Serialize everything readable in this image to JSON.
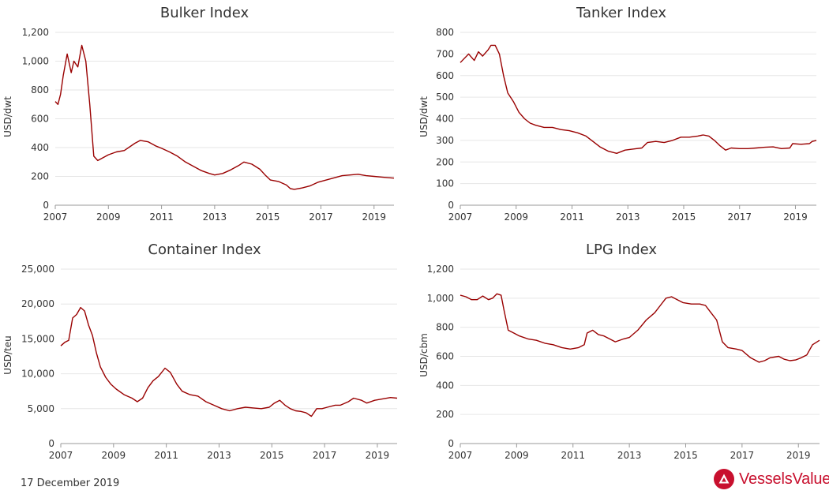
{
  "footer": {
    "date": "17 December 2019"
  },
  "brand": {
    "name": "VesselsValue",
    "color": "#c8102e"
  },
  "colors": {
    "line": "#990000",
    "grid": "#e6e6e6",
    "axis": "#999999",
    "text": "#333333"
  },
  "chart_data": [
    {
      "type": "line",
      "title": "Bulker Index",
      "ylabel": "USD/dwt",
      "xlim": [
        2007,
        2019.75
      ],
      "ylim": [
        0,
        1200
      ],
      "yticks": [
        0,
        200,
        400,
        600,
        800,
        1000,
        1200
      ],
      "ytick_labels": [
        "0",
        "200",
        "400",
        "600",
        "800",
        "1,000",
        "1,200"
      ],
      "xticks": [
        2007,
        2009,
        2011,
        2013,
        2015,
        2017,
        2019
      ],
      "xtick_labels": [
        "2007",
        "2009",
        "2011",
        "2013",
        "2015",
        "2017",
        "2019"
      ],
      "grid": true,
      "series": [
        {
          "points": [
            [
              2007.0,
              720
            ],
            [
              2007.1,
              700
            ],
            [
              2007.2,
              770
            ],
            [
              2007.3,
              900
            ],
            [
              2007.45,
              1050
            ],
            [
              2007.6,
              920
            ],
            [
              2007.7,
              1000
            ],
            [
              2007.85,
              960
            ],
            [
              2008.0,
              1110
            ],
            [
              2008.15,
              1000
            ],
            [
              2008.3,
              700
            ],
            [
              2008.45,
              340
            ],
            [
              2008.6,
              310
            ],
            [
              2008.8,
              330
            ],
            [
              2009.0,
              350
            ],
            [
              2009.3,
              370
            ],
            [
              2009.6,
              380
            ],
            [
              2010.0,
              430
            ],
            [
              2010.2,
              450
            ],
            [
              2010.5,
              440
            ],
            [
              2010.8,
              410
            ],
            [
              2011.0,
              395
            ],
            [
              2011.3,
              370
            ],
            [
              2011.6,
              340
            ],
            [
              2011.9,
              300
            ],
            [
              2012.2,
              270
            ],
            [
              2012.5,
              240
            ],
            [
              2012.8,
              220
            ],
            [
              2013.0,
              210
            ],
            [
              2013.3,
              220
            ],
            [
              2013.6,
              245
            ],
            [
              2013.9,
              275
            ],
            [
              2014.1,
              300
            ],
            [
              2014.4,
              285
            ],
            [
              2014.7,
              250
            ],
            [
              2014.9,
              210
            ],
            [
              2015.1,
              175
            ],
            [
              2015.4,
              165
            ],
            [
              2015.7,
              140
            ],
            [
              2015.85,
              115
            ],
            [
              2016.0,
              110
            ],
            [
              2016.3,
              120
            ],
            [
              2016.6,
              135
            ],
            [
              2016.9,
              160
            ],
            [
              2017.2,
              175
            ],
            [
              2017.5,
              190
            ],
            [
              2017.8,
              205
            ],
            [
              2018.1,
              210
            ],
            [
              2018.4,
              215
            ],
            [
              2018.7,
              205
            ],
            [
              2019.0,
              200
            ],
            [
              2019.3,
              195
            ],
            [
              2019.6,
              190
            ],
            [
              2019.75,
              188
            ]
          ]
        }
      ]
    },
    {
      "type": "line",
      "title": "Tanker Index",
      "ylabel": "USD/dwt",
      "xlim": [
        2007,
        2019.75
      ],
      "ylim": [
        0,
        800
      ],
      "yticks": [
        0,
        100,
        200,
        300,
        400,
        500,
        600,
        700,
        800
      ],
      "ytick_labels": [
        "0",
        "100",
        "200",
        "300",
        "400",
        "500",
        "600",
        "700",
        "800"
      ],
      "xticks": [
        2007,
        2009,
        2011,
        2013,
        2015,
        2017,
        2019
      ],
      "xtick_labels": [
        "2007",
        "2009",
        "2011",
        "2013",
        "2015",
        "2017",
        "2019"
      ],
      "grid": true,
      "series": [
        {
          "points": [
            [
              2007.0,
              660
            ],
            [
              2007.15,
              680
            ],
            [
              2007.3,
              700
            ],
            [
              2007.5,
              670
            ],
            [
              2007.65,
              710
            ],
            [
              2007.8,
              690
            ],
            [
              2008.0,
              720
            ],
            [
              2008.1,
              740
            ],
            [
              2008.25,
              740
            ],
            [
              2008.4,
              700
            ],
            [
              2008.55,
              600
            ],
            [
              2008.7,
              520
            ],
            [
              2008.9,
              480
            ],
            [
              2009.1,
              430
            ],
            [
              2009.3,
              400
            ],
            [
              2009.5,
              380
            ],
            [
              2009.7,
              370
            ],
            [
              2010.0,
              360
            ],
            [
              2010.3,
              360
            ],
            [
              2010.6,
              350
            ],
            [
              2010.9,
              345
            ],
            [
              2011.2,
              335
            ],
            [
              2011.5,
              320
            ],
            [
              2011.8,
              290
            ],
            [
              2012.0,
              270
            ],
            [
              2012.3,
              250
            ],
            [
              2012.6,
              240
            ],
            [
              2012.9,
              255
            ],
            [
              2013.2,
              260
            ],
            [
              2013.5,
              265
            ],
            [
              2013.7,
              290
            ],
            [
              2014.0,
              295
            ],
            [
              2014.3,
              290
            ],
            [
              2014.6,
              300
            ],
            [
              2014.9,
              315
            ],
            [
              2015.2,
              315
            ],
            [
              2015.5,
              320
            ],
            [
              2015.7,
              325
            ],
            [
              2015.9,
              320
            ],
            [
              2016.1,
              300
            ],
            [
              2016.3,
              275
            ],
            [
              2016.5,
              255
            ],
            [
              2016.7,
              265
            ],
            [
              2017.0,
              262
            ],
            [
              2017.3,
              262
            ],
            [
              2017.6,
              265
            ],
            [
              2017.9,
              268
            ],
            [
              2018.2,
              270
            ],
            [
              2018.5,
              262
            ],
            [
              2018.8,
              265
            ],
            [
              2018.9,
              285
            ],
            [
              2019.2,
              282
            ],
            [
              2019.5,
              285
            ],
            [
              2019.6,
              295
            ],
            [
              2019.75,
              300
            ]
          ]
        }
      ]
    },
    {
      "type": "line",
      "title": "Container Index",
      "ylabel": "USD/teu",
      "xlim": [
        2007,
        2019.75
      ],
      "ylim": [
        0,
        25000
      ],
      "yticks": [
        0,
        5000,
        10000,
        15000,
        20000,
        25000
      ],
      "ytick_labels": [
        "0",
        "5,000",
        "10,000",
        "15,000",
        "20,000",
        "25,000"
      ],
      "xticks": [
        2007,
        2009,
        2011,
        2013,
        2015,
        2017,
        2019
      ],
      "xtick_labels": [
        "2007",
        "2009",
        "2011",
        "2013",
        "2015",
        "2017",
        "2019"
      ],
      "grid": true,
      "series": [
        {
          "points": [
            [
              2007.0,
              14000
            ],
            [
              2007.15,
              14500
            ],
            [
              2007.3,
              14800
            ],
            [
              2007.45,
              18000
            ],
            [
              2007.6,
              18500
            ],
            [
              2007.75,
              19500
            ],
            [
              2007.9,
              19000
            ],
            [
              2008.05,
              17000
            ],
            [
              2008.2,
              15500
            ],
            [
              2008.35,
              13000
            ],
            [
              2008.5,
              11000
            ],
            [
              2008.7,
              9500
            ],
            [
              2008.9,
              8500
            ],
            [
              2009.1,
              7800
            ],
            [
              2009.4,
              7000
            ],
            [
              2009.7,
              6500
            ],
            [
              2009.9,
              6000
            ],
            [
              2010.1,
              6500
            ],
            [
              2010.3,
              8000
            ],
            [
              2010.5,
              9000
            ],
            [
              2010.7,
              9600
            ],
            [
              2010.95,
              10800
            ],
            [
              2011.15,
              10200
            ],
            [
              2011.4,
              8500
            ],
            [
              2011.6,
              7500
            ],
            [
              2011.9,
              7000
            ],
            [
              2012.2,
              6800
            ],
            [
              2012.5,
              6000
            ],
            [
              2012.8,
              5500
            ],
            [
              2013.1,
              5000
            ],
            [
              2013.4,
              4700
            ],
            [
              2013.7,
              5000
            ],
            [
              2014.0,
              5200
            ],
            [
              2014.3,
              5100
            ],
            [
              2014.6,
              5000
            ],
            [
              2014.9,
              5200
            ],
            [
              2015.1,
              5800
            ],
            [
              2015.3,
              6200
            ],
            [
              2015.5,
              5500
            ],
            [
              2015.7,
              5000
            ],
            [
              2015.9,
              4700
            ],
            [
              2016.1,
              4600
            ],
            [
              2016.3,
              4400
            ],
            [
              2016.5,
              3900
            ],
            [
              2016.7,
              5000
            ],
            [
              2016.9,
              5000
            ],
            [
              2017.1,
              5200
            ],
            [
              2017.4,
              5500
            ],
            [
              2017.6,
              5500
            ],
            [
              2017.9,
              6000
            ],
            [
              2018.1,
              6500
            ],
            [
              2018.4,
              6200
            ],
            [
              2018.6,
              5800
            ],
            [
              2018.9,
              6200
            ],
            [
              2019.2,
              6400
            ],
            [
              2019.5,
              6600
            ],
            [
              2019.75,
              6500
            ]
          ]
        }
      ]
    },
    {
      "type": "line",
      "title": "LPG Index",
      "ylabel": "USD/cbm",
      "xlim": [
        2007,
        2019.75
      ],
      "ylim": [
        0,
        1200
      ],
      "yticks": [
        0,
        200,
        400,
        600,
        800,
        1000,
        1200
      ],
      "ytick_labels": [
        "0",
        "200",
        "400",
        "600",
        "800",
        "1,000",
        "1,200"
      ],
      "xticks": [
        2007,
        2009,
        2011,
        2013,
        2015,
        2017,
        2019
      ],
      "xtick_labels": [
        "2007",
        "2009",
        "2011",
        "2013",
        "2015",
        "2017",
        "2019"
      ],
      "grid": true,
      "series": [
        {
          "points": [
            [
              2007.0,
              1020
            ],
            [
              2007.2,
              1010
            ],
            [
              2007.4,
              990
            ],
            [
              2007.6,
              990
            ],
            [
              2007.8,
              1015
            ],
            [
              2008.0,
              990
            ],
            [
              2008.15,
              1000
            ],
            [
              2008.3,
              1030
            ],
            [
              2008.45,
              1020
            ],
            [
              2008.55,
              920
            ],
            [
              2008.7,
              780
            ],
            [
              2008.9,
              760
            ],
            [
              2009.1,
              740
            ],
            [
              2009.4,
              720
            ],
            [
              2009.7,
              710
            ],
            [
              2010.0,
              690
            ],
            [
              2010.3,
              680
            ],
            [
              2010.6,
              660
            ],
            [
              2010.9,
              650
            ],
            [
              2011.2,
              660
            ],
            [
              2011.4,
              680
            ],
            [
              2011.5,
              760
            ],
            [
              2011.7,
              780
            ],
            [
              2011.9,
              750
            ],
            [
              2012.1,
              740
            ],
            [
              2012.3,
              720
            ],
            [
              2012.5,
              700
            ],
            [
              2012.8,
              720
            ],
            [
              2013.0,
              730
            ],
            [
              2013.3,
              780
            ],
            [
              2013.6,
              850
            ],
            [
              2013.9,
              900
            ],
            [
              2014.1,
              950
            ],
            [
              2014.3,
              1000
            ],
            [
              2014.5,
              1010
            ],
            [
              2014.7,
              990
            ],
            [
              2014.9,
              970
            ],
            [
              2015.2,
              960
            ],
            [
              2015.5,
              960
            ],
            [
              2015.7,
              950
            ],
            [
              2015.9,
              900
            ],
            [
              2016.1,
              850
            ],
            [
              2016.3,
              700
            ],
            [
              2016.5,
              660
            ],
            [
              2016.8,
              650
            ],
            [
              2017.0,
              640
            ],
            [
              2017.3,
              590
            ],
            [
              2017.6,
              560
            ],
            [
              2017.8,
              570
            ],
            [
              2018.0,
              590
            ],
            [
              2018.3,
              600
            ],
            [
              2018.5,
              580
            ],
            [
              2018.7,
              570
            ],
            [
              2018.9,
              575
            ],
            [
              2019.1,
              590
            ],
            [
              2019.3,
              610
            ],
            [
              2019.5,
              680
            ],
            [
              2019.75,
              710
            ]
          ]
        }
      ]
    }
  ]
}
